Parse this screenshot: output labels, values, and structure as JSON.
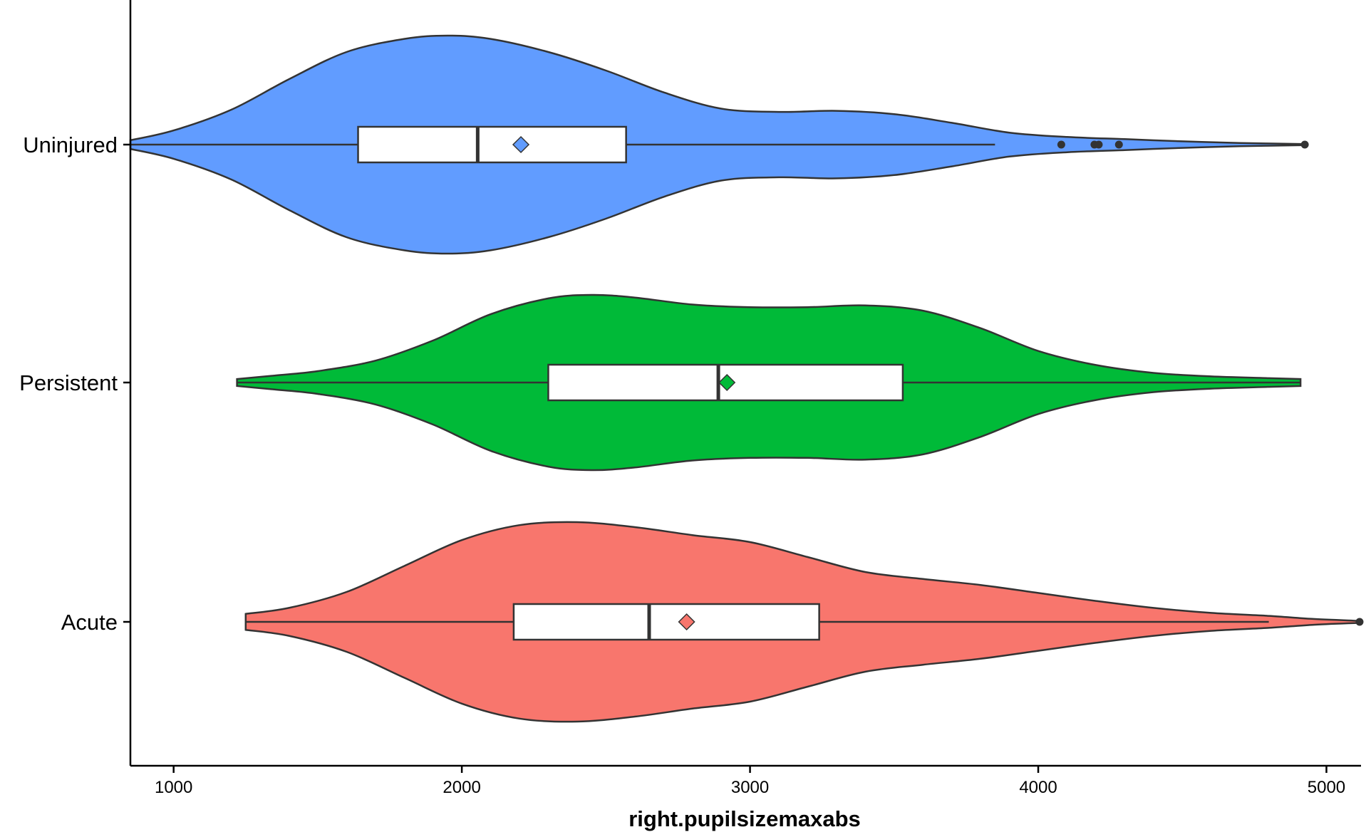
{
  "chart_data": {
    "type": "violin",
    "title": "",
    "xlabel": "right.pupilsizemaxabs",
    "ylabel": "",
    "xlim": [
      850,
      5120
    ],
    "x_ticks": [
      1000,
      2000,
      3000,
      4000,
      5000
    ],
    "x_tick_labels": [
      "1000",
      "2000",
      "3000",
      "4000",
      "5000"
    ],
    "categories": [
      "Uninjured",
      "Persistent",
      "Acute"
    ],
    "grid": false,
    "legend": "none",
    "series": [
      {
        "name": "Uninjured",
        "color": "#619CFF",
        "box": {
          "whisker_low": 850,
          "q1": 1640,
          "median": 2055,
          "q3": 2570,
          "whisker_high": 3850,
          "mean": 2205
        },
        "outliers": [
          4080,
          4195,
          4210,
          4280,
          4925
        ],
        "density_x": [
          850,
          1000,
          1200,
          1400,
          1600,
          1800,
          1950,
          2100,
          2300,
          2500,
          2700,
          2900,
          3100,
          3300,
          3500,
          3700,
          3900,
          4100,
          4300,
          4500,
          4700,
          4925
        ],
        "density_w": [
          0.04,
          0.13,
          0.32,
          0.6,
          0.85,
          0.97,
          1.0,
          0.97,
          0.85,
          0.68,
          0.48,
          0.33,
          0.3,
          0.31,
          0.28,
          0.2,
          0.11,
          0.07,
          0.05,
          0.03,
          0.015,
          0.005
        ]
      },
      {
        "name": "Persistent",
        "color": "#00BA38",
        "box": {
          "whisker_low": 1220,
          "q1": 2300,
          "median": 2890,
          "q3": 3530,
          "whisker_high": 4910,
          "mean": 2920
        },
        "outliers": [],
        "density_x": [
          1220,
          1350,
          1500,
          1700,
          1900,
          2100,
          2300,
          2450,
          2600,
          2800,
          3000,
          3200,
          3400,
          3600,
          3800,
          4000,
          4200,
          4400,
          4600,
          4800,
          4910
        ],
        "density_w": [
          0.04,
          0.08,
          0.13,
          0.25,
          0.48,
          0.78,
          0.96,
          1.0,
          0.97,
          0.89,
          0.86,
          0.86,
          0.88,
          0.82,
          0.62,
          0.36,
          0.2,
          0.11,
          0.07,
          0.05,
          0.04
        ]
      },
      {
        "name": "Acute",
        "color": "#F8766D",
        "box": {
          "whisker_low": 1250,
          "q1": 2180,
          "median": 2650,
          "q3": 3240,
          "whisker_high": 4800,
          "mean": 2780
        },
        "outliers": [
          5115
        ],
        "density_x": [
          1250,
          1400,
          1600,
          1800,
          2000,
          2200,
          2400,
          2600,
          2800,
          3000,
          3200,
          3400,
          3600,
          3800,
          4000,
          4200,
          4400,
          4600,
          4800,
          4950,
          5115
        ],
        "density_w": [
          0.08,
          0.14,
          0.3,
          0.56,
          0.82,
          0.97,
          1.0,
          0.95,
          0.87,
          0.8,
          0.65,
          0.5,
          0.43,
          0.37,
          0.29,
          0.21,
          0.14,
          0.09,
          0.06,
          0.03,
          0.01
        ]
      }
    ]
  }
}
